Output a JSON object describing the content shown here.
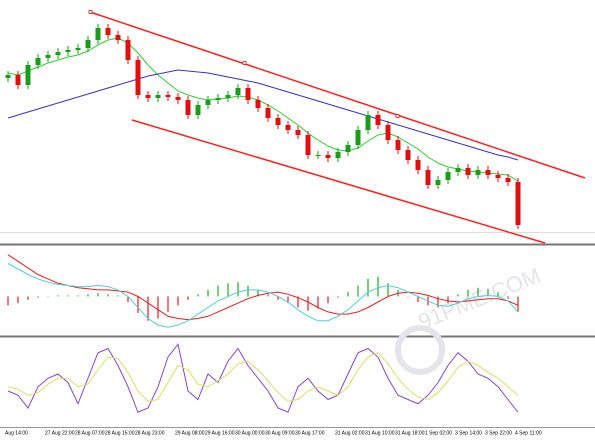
{
  "chart_data": [
    {
      "type": "candlestick",
      "categories": [
        "Aug 14:00",
        null,
        null,
        null,
        "27 Aug 22:00",
        null,
        null,
        "28 Aug 07:00",
        null,
        null,
        "28 Aug 15:00",
        null,
        null,
        "28 Aug 23:00",
        null,
        null,
        null,
        "29 Aug 08:00",
        null,
        null,
        "29 Aug 16:00",
        null,
        null,
        "30 Aug 00:00",
        null,
        null,
        "30 Aug 09:00",
        null,
        null,
        "30 Aug 17:00",
        null,
        null,
        null,
        "31 Aug 02:00",
        null,
        null,
        "31 Aug 10:00",
        null,
        null,
        "31 Aug 18:00",
        null,
        null,
        "1 Sep 02:00",
        null,
        null,
        "3 Sep 14:00",
        null,
        null,
        "3 Sep 22:00",
        null,
        null,
        "4 Sep 11:00"
      ],
      "open": [
        165,
        168,
        158,
        178,
        185,
        188,
        191,
        193,
        195,
        203,
        215,
        208,
        203,
        183,
        148,
        145,
        148,
        146,
        143,
        128,
        138,
        143,
        145,
        148,
        155,
        143,
        135,
        125,
        118,
        113,
        108,
        88,
        88,
        85,
        91,
        98,
        113,
        128,
        118,
        103,
        93,
        83,
        73,
        58,
        63,
        71,
        75,
        68,
        73,
        68,
        65,
        61
      ],
      "high": [
        172,
        172,
        182,
        189,
        192,
        195,
        197,
        199,
        207,
        219,
        219,
        212,
        207,
        187,
        152,
        152,
        152,
        150,
        147,
        142,
        147,
        149,
        152,
        159,
        159,
        147,
        139,
        129,
        122,
        117,
        112,
        92,
        92,
        95,
        102,
        117,
        132,
        132,
        122,
        107,
        97,
        87,
        77,
        67,
        75,
        79,
        79,
        77,
        77,
        72,
        69,
        65
      ],
      "low": [
        161,
        154,
        154,
        174,
        181,
        184,
        187,
        189,
        191,
        199,
        204,
        199,
        179,
        144,
        141,
        141,
        142,
        139,
        124,
        124,
        134,
        139,
        141,
        144,
        139,
        131,
        121,
        114,
        109,
        104,
        84,
        84,
        81,
        81,
        87,
        94,
        109,
        114,
        99,
        89,
        79,
        69,
        54,
        54,
        59,
        67,
        64,
        64,
        64,
        61,
        57,
        14
      ],
      "close": [
        168,
        158,
        178,
        185,
        188,
        191,
        193,
        195,
        203,
        215,
        208,
        203,
        183,
        148,
        145,
        148,
        146,
        143,
        128,
        138,
        143,
        145,
        148,
        155,
        143,
        135,
        125,
        118,
        113,
        108,
        88,
        88,
        85,
        91,
        98,
        113,
        128,
        118,
        103,
        93,
        83,
        73,
        58,
        63,
        71,
        75,
        68,
        73,
        68,
        65,
        61,
        18
      ],
      "up_color": "#1a9e1a",
      "down_color": "#e01010",
      "ylim": [
        0,
        243
      ],
      "series": [
        {
          "color": "#33cc33",
          "values": [
            170,
            168,
            172,
            176,
            180,
            183,
            186,
            188,
            192,
            198,
            203,
            205,
            200,
            190,
            178,
            168,
            160,
            152,
            148,
            145,
            143,
            144,
            145,
            147,
            146,
            143,
            138,
            132,
            125,
            118,
            110,
            103,
            97,
            93,
            92,
            95,
            102,
            108,
            110,
            106,
            100,
            94,
            86,
            80,
            76,
            74,
            72,
            71,
            70,
            69,
            68,
            62
          ]
        },
        {
          "color": "#3333cc",
          "values": [
            125,
            128,
            131,
            134,
            137,
            140,
            143,
            146,
            149,
            152,
            155,
            158,
            161,
            164,
            167,
            169,
            171,
            173,
            172,
            171,
            170,
            168,
            166,
            164,
            162,
            160,
            157,
            154,
            151,
            148,
            145,
            142,
            139,
            136,
            133,
            130,
            127,
            124,
            121,
            118,
            115,
            112,
            109,
            106,
            103,
            100,
            97,
            94,
            91,
            88,
            86,
            83
          ]
        }
      ]
    },
    {
      "type": "bar",
      "values": [
        -8,
        -6,
        -3,
        -1,
        0,
        1,
        1,
        1,
        2,
        3,
        2,
        1,
        -5,
        -15,
        -22,
        -20,
        -14,
        -8,
        -3,
        2,
        6,
        10,
        12,
        13,
        10,
        6,
        2,
        -3,
        -6,
        -10,
        -13,
        -11,
        -6,
        -1,
        4,
        10,
        16,
        18,
        12,
        6,
        0,
        -5,
        -8,
        -10,
        -6,
        2,
        6,
        8,
        7,
        4,
        -2,
        -14
      ],
      "up_color": "#22aa22",
      "down_color": "#e02020",
      "ylim": [
        -35,
        45
      ],
      "series": [
        {
          "color": "#e02020",
          "values": [
            38,
            32,
            26,
            20,
            16,
            12,
            10,
            8,
            7,
            6,
            6,
            5,
            4,
            0,
            -6,
            -12,
            -18,
            -20,
            -21,
            -20,
            -18,
            -14,
            -10,
            -6,
            -2,
            1,
            3,
            4,
            2,
            -1,
            -5,
            -10,
            -14,
            -16,
            -16,
            -14,
            -10,
            -5,
            0,
            3,
            4,
            3,
            1,
            -2,
            -4,
            -5,
            -4,
            -3,
            -2,
            -2,
            -4,
            -8
          ]
        },
        {
          "color": "#55ccdd",
          "values": [
            30,
            25,
            20,
            16,
            13,
            11,
            10,
            9,
            9,
            10,
            9,
            6,
            0,
            -10,
            -20,
            -26,
            -28,
            -26,
            -22,
            -16,
            -10,
            -4,
            0,
            4,
            6,
            6,
            4,
            0,
            -5,
            -12,
            -18,
            -22,
            -22,
            -18,
            -12,
            -4,
            4,
            8,
            10,
            8,
            4,
            0,
            -4,
            -8,
            -9,
            -6,
            -2,
            0,
            1,
            0,
            -4,
            -14
          ]
        }
      ]
    },
    {
      "type": "line",
      "ylim": [
        0,
        100
      ],
      "series": [
        {
          "color": "#8844cc",
          "values": [
            40,
            35,
            20,
            45,
            55,
            60,
            50,
            25,
            55,
            85,
            90,
            70,
            45,
            15,
            20,
            45,
            80,
            95,
            40,
            30,
            60,
            50,
            75,
            90,
            70,
            55,
            40,
            20,
            15,
            45,
            55,
            40,
            30,
            35,
            60,
            85,
            90,
            80,
            55,
            35,
            30,
            25,
            35,
            50,
            70,
            85,
            75,
            60,
            55,
            45,
            30,
            15
          ]
        },
        {
          "color": "#dddd66",
          "values": [
            45,
            42,
            35,
            38,
            48,
            55,
            55,
            45,
            48,
            65,
            80,
            78,
            62,
            40,
            28,
            30,
            50,
            70,
            65,
            48,
            45,
            52,
            60,
            72,
            75,
            65,
            52,
            38,
            28,
            30,
            40,
            45,
            40,
            35,
            45,
            65,
            80,
            85,
            72,
            55,
            42,
            33,
            30,
            38,
            52,
            68,
            75,
            70,
            62,
            55,
            45,
            35
          ]
        }
      ]
    }
  ],
  "watermark": "91PME.COM"
}
